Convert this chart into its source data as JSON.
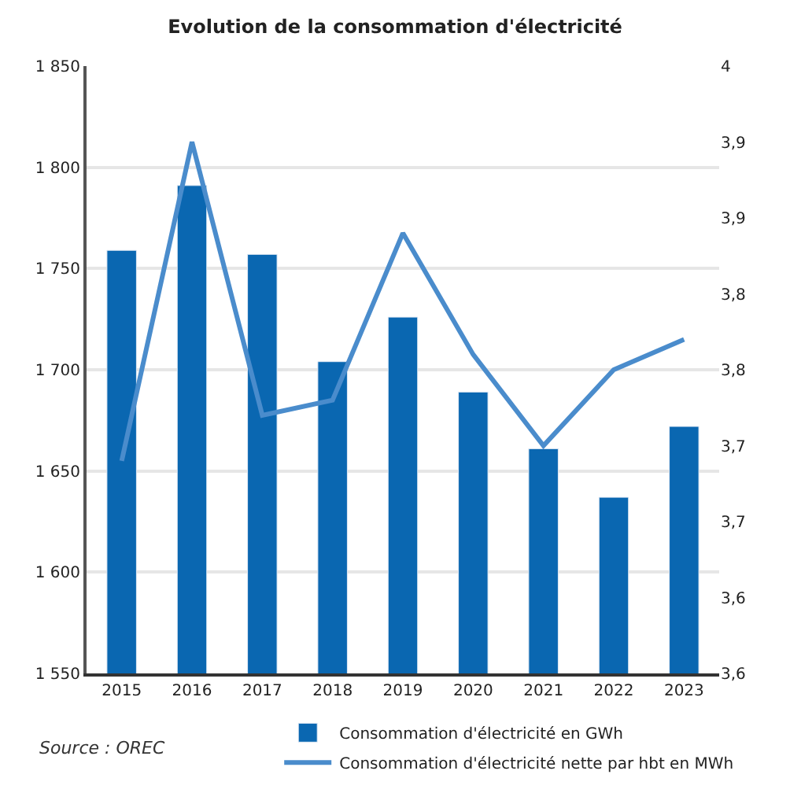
{
  "chart_data": {
    "type": "bar",
    "title": "Evolution de la consommation d'électricité",
    "categories": [
      "2015",
      "2016",
      "2017",
      "2018",
      "2019",
      "2020",
      "2021",
      "2022",
      "2023"
    ],
    "series": [
      {
        "name": "Consommation d'électricité en GWh",
        "color": "#0a67b1",
        "values": [
          1759,
          1791,
          1757,
          1704,
          1726,
          1689,
          1661,
          1637,
          1672
        ]
      },
      {
        "name": "Consommation d'électricité nette par hbt en MWh",
        "type": "line",
        "axis": "y2",
        "color": "#4a8ccc",
        "values": [
          3.74,
          3.95,
          3.77,
          3.78,
          3.89,
          3.81,
          3.75,
          3.8,
          3.82
        ]
      }
    ],
    "ylim": [
      1550,
      1850
    ],
    "yticks": [
      {
        "value": 1550,
        "label": "1 550"
      },
      {
        "value": 1600,
        "label": "1 600"
      },
      {
        "value": 1650,
        "label": "1 650"
      },
      {
        "value": 1700,
        "label": "1 700"
      },
      {
        "value": 1750,
        "label": "1 750"
      },
      {
        "value": 1800,
        "label": "1 800"
      },
      {
        "value": 1850,
        "label": "1 850"
      }
    ],
    "y2lim": [
      3.6,
      4.0
    ],
    "y2ticks": [
      {
        "value": 3.6,
        "label": "3,6"
      },
      {
        "value": 3.65,
        "label": "3,6"
      },
      {
        "value": 3.7,
        "label": "3,7"
      },
      {
        "value": 3.75,
        "label": "3,7"
      },
      {
        "value": 3.8,
        "label": "3,8"
      },
      {
        "value": 3.85,
        "label": "3,8"
      },
      {
        "value": 3.9,
        "label": "3,9"
      },
      {
        "value": 3.95,
        "label": "3,9"
      },
      {
        "value": 4,
        "label": "4"
      }
    ],
    "grid": "y",
    "legend": "bottom right",
    "marker": "none",
    "line_style": "solid",
    "annotations": [
      "Source : OREC"
    ]
  }
}
